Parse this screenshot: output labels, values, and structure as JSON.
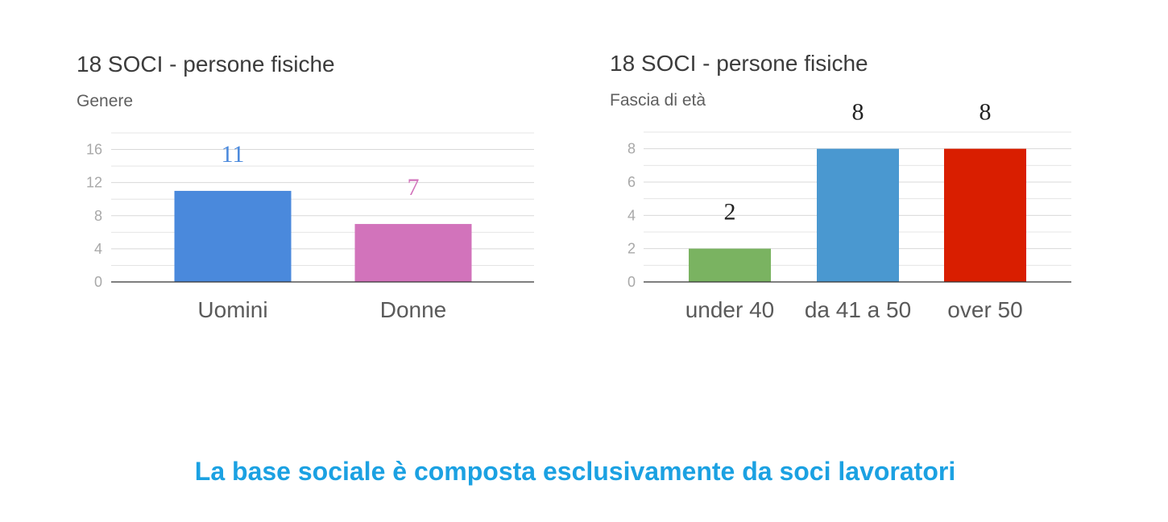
{
  "chart_data": [
    {
      "type": "bar",
      "title": "18 SOCI - persone fisiche",
      "subtitle": "Genere",
      "categories": [
        "Uomini",
        "Donne"
      ],
      "values": [
        11,
        7
      ],
      "data_labels": [
        "11",
        "7"
      ],
      "colors": [
        "#4a89dc",
        "#d273bb"
      ],
      "label_colors": [
        "#4a89dc",
        "#d273bb"
      ],
      "ylim": [
        0,
        18
      ],
      "yticks": [
        0,
        4,
        8,
        12,
        16
      ],
      "ytick_labels": [
        "0",
        "4",
        "8",
        "12",
        "16"
      ],
      "minor_gridlines": [
        2,
        6,
        10,
        14,
        18
      ],
      "grid": true,
      "legend": "none"
    },
    {
      "type": "bar",
      "title": "18 SOCI - persone fisiche",
      "subtitle": "Fascia di età",
      "categories": [
        "under 40",
        "da 41 a 50",
        "over 50"
      ],
      "values": [
        2,
        8,
        8
      ],
      "data_labels": [
        "2",
        "8",
        "8"
      ],
      "colors": [
        "#7ab361",
        "#4a98d0",
        "#d91e00"
      ],
      "label_colors": [
        "#222222",
        "#222222",
        "#222222"
      ],
      "ylim": [
        0,
        9
      ],
      "yticks": [
        0,
        2,
        4,
        6,
        8
      ],
      "ytick_labels": [
        "0",
        "2",
        "4",
        "6",
        "8"
      ],
      "minor_gridlines": [
        1,
        3,
        5,
        7,
        9
      ],
      "grid": true,
      "legend": "none"
    }
  ],
  "footer": {
    "text": "La base sociale è composta esclusivamente da soci lavoratori"
  }
}
